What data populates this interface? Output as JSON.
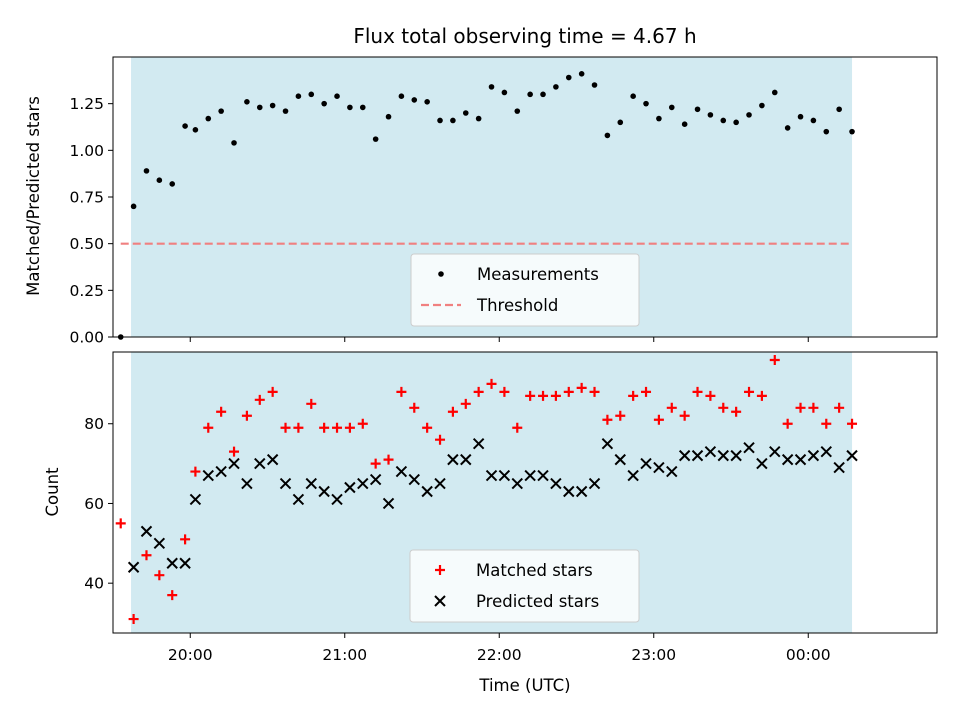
{
  "chart_data": {
    "title": "Flux total observing time = 4.67 h",
    "xlabel": "Time (UTC)",
    "x_unit": "HH:MM",
    "x_ticks": [
      "20:00",
      "21:00",
      "22:00",
      "23:00",
      "00:00"
    ],
    "x_range": [
      "19:30",
      "00:50"
    ],
    "observing_window": [
      "19:37",
      "00:17"
    ],
    "colors": {
      "band": "#add8e6",
      "threshold": "#f08080",
      "matched": "#ff0000",
      "predicted": "#000000",
      "measurements": "#000000"
    },
    "panels": [
      {
        "type": "scatter",
        "ylabel": "Matched/Predicted stars",
        "ylim": [
          0,
          1.5
        ],
        "yticks": [
          "0.00",
          "0.25",
          "0.50",
          "0.75",
          "1.00",
          "1.25"
        ],
        "legend_position": "lower-center",
        "threshold": {
          "name": "Threshold",
          "value": 0.5,
          "style": "dashed",
          "x_range": [
            "19:33",
            "00:17"
          ]
        },
        "series": [
          {
            "name": "Measurements",
            "marker": "dot",
            "x": [
              "19:33",
              "19:38",
              "19:43",
              "19:48",
              "19:53",
              "19:58",
              "20:02",
              "20:07",
              "20:12",
              "20:17",
              "20:22",
              "20:27",
              "20:32",
              "20:37",
              "20:42",
              "20:47",
              "20:52",
              "20:57",
              "21:02",
              "21:07",
              "21:12",
              "21:17",
              "21:22",
              "21:27",
              "21:32",
              "21:37",
              "21:42",
              "21:47",
              "21:52",
              "21:57",
              "22:02",
              "22:07",
              "22:12",
              "22:17",
              "22:22",
              "22:27",
              "22:32",
              "22:37",
              "22:42",
              "22:47",
              "22:52",
              "22:57",
              "23:02",
              "23:07",
              "23:12",
              "23:17",
              "23:22",
              "23:27",
              "23:32",
              "23:37",
              "23:42",
              "23:47",
              "23:52",
              "23:57",
              "00:02",
              "00:07",
              "00:12",
              "00:17"
            ],
            "y": [
              0.0,
              0.7,
              0.89,
              0.84,
              0.82,
              1.13,
              1.11,
              1.17,
              1.21,
              1.04,
              1.26,
              1.23,
              1.24,
              1.21,
              1.29,
              1.3,
              1.25,
              1.29,
              1.23,
              1.23,
              1.06,
              1.18,
              1.29,
              1.27,
              1.26,
              1.16,
              1.16,
              1.2,
              1.17,
              1.34,
              1.31,
              1.21,
              1.3,
              1.3,
              1.34,
              1.39,
              1.41,
              1.35,
              1.08,
              1.15,
              1.29,
              1.25,
              1.17,
              1.23,
              1.14,
              1.22,
              1.19,
              1.16,
              1.15,
              1.19,
              1.24,
              1.31,
              1.12,
              1.18,
              1.16,
              1.1,
              1.22,
              1.1
            ]
          }
        ]
      },
      {
        "type": "scatter",
        "ylabel": "Count",
        "ylim": [
          27.5,
          98
        ],
        "yticks": [
          "40",
          "60",
          "80"
        ],
        "legend_position": "lower-center",
        "series": [
          {
            "name": "Matched stars",
            "marker": "plus",
            "x": [
              "19:33",
              "19:38",
              "19:43",
              "19:48",
              "19:53",
              "19:58",
              "20:02",
              "20:07",
              "20:12",
              "20:17",
              "20:22",
              "20:27",
              "20:32",
              "20:37",
              "20:42",
              "20:47",
              "20:52",
              "20:57",
              "21:02",
              "21:07",
              "21:12",
              "21:17",
              "21:22",
              "21:27",
              "21:32",
              "21:37",
              "21:42",
              "21:47",
              "21:52",
              "21:57",
              "22:02",
              "22:07",
              "22:12",
              "22:17",
              "22:22",
              "22:27",
              "22:32",
              "22:37",
              "22:42",
              "22:47",
              "22:52",
              "22:57",
              "23:02",
              "23:07",
              "23:12",
              "23:17",
              "23:22",
              "23:27",
              "23:32",
              "23:37",
              "23:42",
              "23:47",
              "23:52",
              "23:57",
              "00:02",
              "00:07",
              "00:12",
              "00:17"
            ],
            "y": [
              55,
              31,
              47,
              42,
              37,
              51,
              68,
              79,
              83,
              73,
              82,
              86,
              88,
              79,
              79,
              85,
              79,
              79,
              79,
              80,
              70,
              71,
              88,
              84,
              79,
              76,
              83,
              85,
              88,
              90,
              88,
              79,
              87,
              87,
              87,
              88,
              89,
              88,
              81,
              82,
              87,
              88,
              81,
              84,
              82,
              88,
              87,
              84,
              83,
              88,
              87,
              96,
              80,
              84,
              84,
              80,
              84,
              80
            ]
          },
          {
            "name": "Predicted stars",
            "marker": "x",
            "x": [
              "19:38",
              "19:43",
              "19:48",
              "19:53",
              "19:58",
              "20:02",
              "20:07",
              "20:12",
              "20:17",
              "20:22",
              "20:27",
              "20:32",
              "20:37",
              "20:42",
              "20:47",
              "20:52",
              "20:57",
              "21:02",
              "21:07",
              "21:12",
              "21:17",
              "21:22",
              "21:27",
              "21:32",
              "21:37",
              "21:42",
              "21:47",
              "21:52",
              "21:57",
              "22:02",
              "22:07",
              "22:12",
              "22:17",
              "22:22",
              "22:27",
              "22:32",
              "22:37",
              "22:42",
              "22:47",
              "22:52",
              "22:57",
              "23:02",
              "23:07",
              "23:12",
              "23:17",
              "23:22",
              "23:27",
              "23:32",
              "23:37",
              "23:42",
              "23:47",
              "23:52",
              "23:57",
              "00:02",
              "00:07",
              "00:12",
              "00:17"
            ],
            "y": [
              44,
              53,
              50,
              45,
              45,
              61,
              67,
              68,
              70,
              65,
              70,
              71,
              65,
              61,
              65,
              63,
              61,
              64,
              65,
              66,
              60,
              68,
              66,
              63,
              65,
              71,
              71,
              75,
              67,
              67,
              65,
              67,
              67,
              65,
              63,
              63,
              65,
              75,
              71,
              67,
              70,
              69,
              68,
              72,
              72,
              73,
              72,
              72,
              74,
              70,
              73,
              71,
              71,
              72,
              73,
              69,
              72
            ]
          }
        ]
      }
    ]
  }
}
